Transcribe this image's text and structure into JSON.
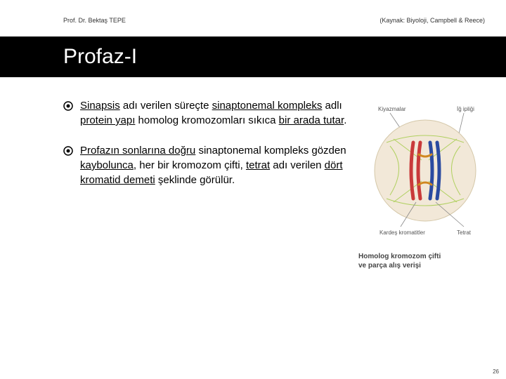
{
  "header": {
    "author": "Prof. Dr. Bektaş TEPE",
    "source": "(Kaynak: Biyoloji, Campbell & Reece)"
  },
  "title": "Profaz-I",
  "bullets": [
    {
      "segments": [
        {
          "t": "Sinapsis",
          "u": true
        },
        {
          "t": " adı verilen süreçte ",
          "u": false
        },
        {
          "t": "sinaptonemal kompleks",
          "u": true
        },
        {
          "t": " adlı ",
          "u": false
        },
        {
          "t": "protein yapı",
          "u": true
        },
        {
          "t": " homolog kromozomları sıkıca ",
          "u": false
        },
        {
          "t": "bir arada tutar",
          "u": true
        },
        {
          "t": ".",
          "u": false
        }
      ]
    },
    {
      "segments": [
        {
          "t": "Profazın sonlarına doğru",
          "u": true
        },
        {
          "t": " sinaptonemal kompleks gözden ",
          "u": false
        },
        {
          "t": "kaybolunca",
          "u": true
        },
        {
          "t": ", her bir kromozom çifti, ",
          "u": false
        },
        {
          "t": "tetrat",
          "u": true
        },
        {
          "t": " adı verilen ",
          "u": false
        },
        {
          "t": "dört kromatid demeti",
          "u": true
        },
        {
          "t": " şeklinde görülür.",
          "u": false
        }
      ]
    }
  ],
  "diagram": {
    "label_kiyazmalar": "Kiyazmalar",
    "label_igipligi": "İğ ipliği",
    "label_kardes": "Kardeş kromatitler",
    "label_tetrat": "Tetrat",
    "caption_line1": "Homolog kromozom çifti",
    "caption_line2": "ve parça alış verişi",
    "colors": {
      "cell_fill": "#f2e8d8",
      "cell_stroke": "#d4c7a8",
      "chrom_red": "#c93a3a",
      "chrom_blue": "#2a4aa0",
      "spindle": "#b0d060",
      "cross": "#d08820"
    }
  },
  "page_number": "26"
}
